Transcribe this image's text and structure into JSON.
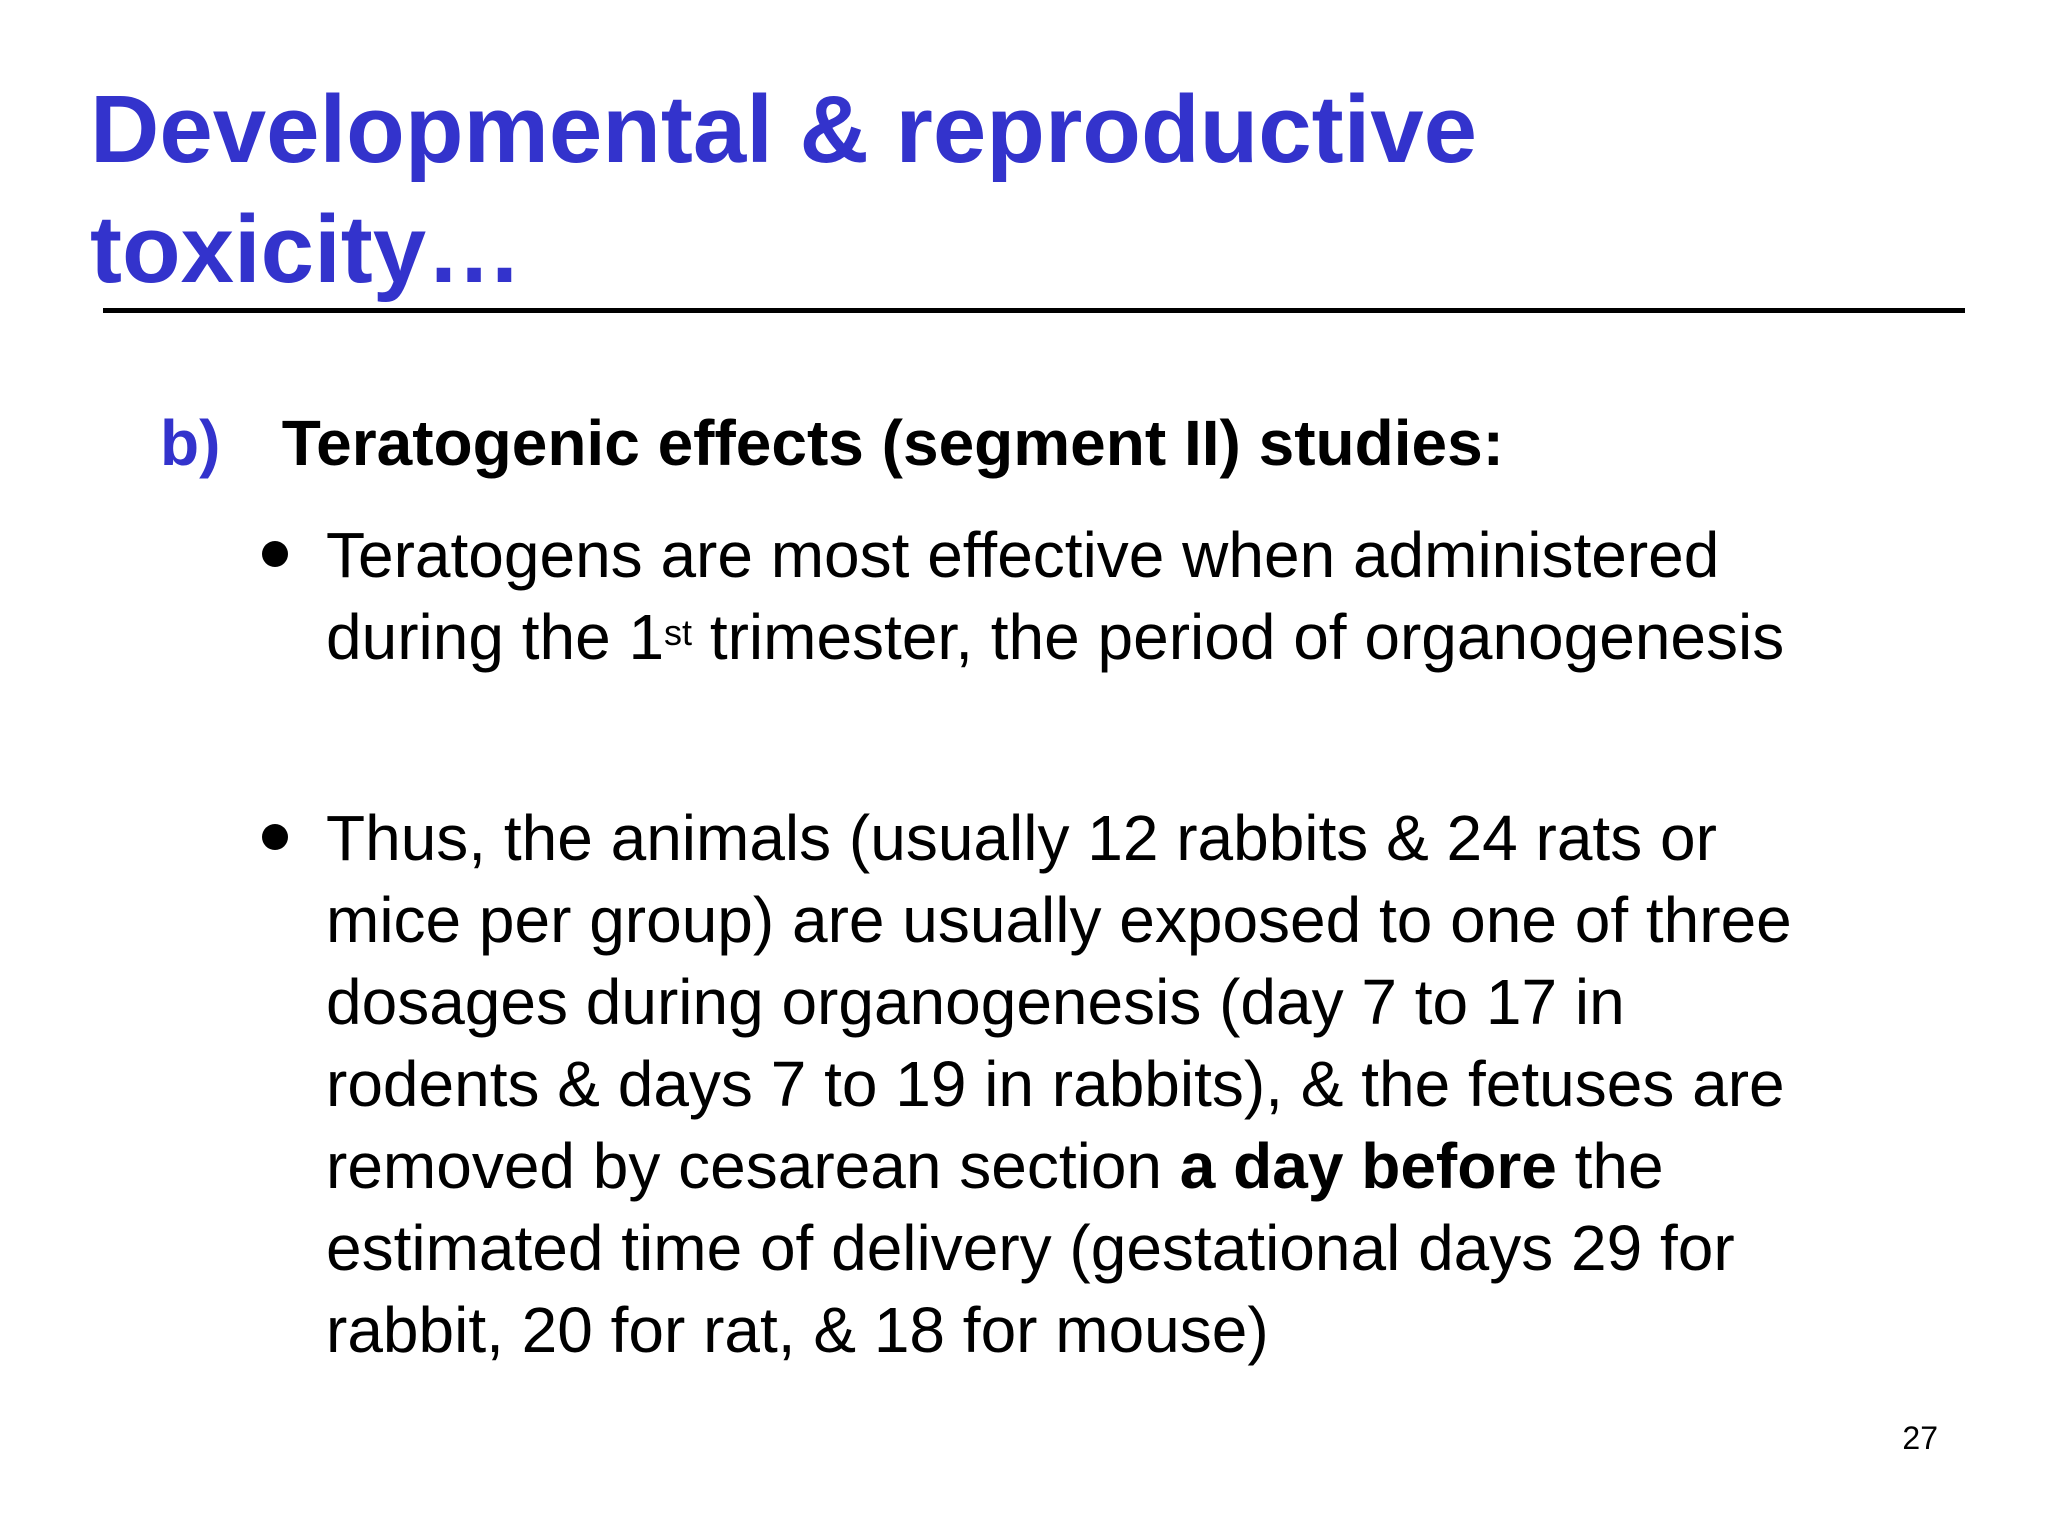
{
  "slide": {
    "title_lines": [
      "Developmental & reproductive",
      "toxicity…"
    ],
    "section": {
      "marker": "b)",
      "heading": "Teratogenic effects (segment II) studies:"
    },
    "bullets": [
      {
        "line1": "Teratogens are most effective when administered",
        "line2_pre": "during the 1",
        "line2_sup": "st",
        "line2_post": " trimester, the period of organogenesis"
      },
      {
        "lines": [
          "Thus, the animals (usually 12 rabbits & 24 rats or",
          "mice per group) are usually exposed to one of three",
          "dosages during organogenesis (day 7 to 17 in",
          "rodents & days 7 to 19 in rabbits), & the fetuses are"
        ],
        "line5_pre": "removed by cesarean section ",
        "line5_bold": "a day before",
        "line5_post": " the",
        "lines_after": [
          "estimated time of delivery (gestational days 29 for",
          "rabbit, 20 for rat, & 18 for mouse)"
        ]
      }
    ],
    "page_number": "27"
  },
  "colors": {
    "accent": "#3333cc",
    "text": "#000000",
    "background": "#ffffff"
  }
}
